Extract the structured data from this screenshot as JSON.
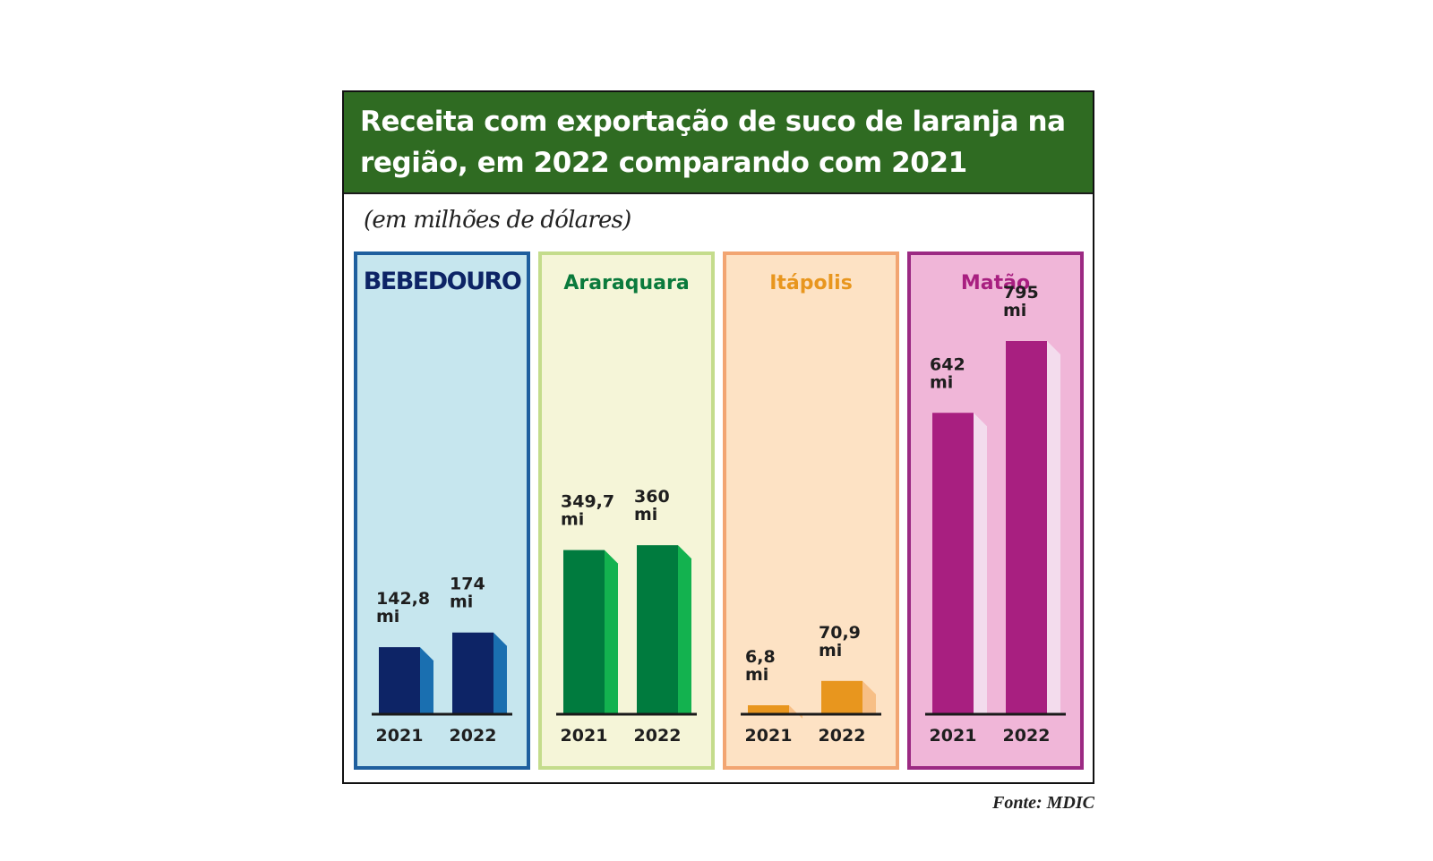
{
  "title": "Receita com exportação de suco de laranja na região, em 2022 comparando com 2021",
  "title_lines": [
    "Receita com exportação de suco de laranja na",
    "região, em 2022 comparando com 2021"
  ],
  "unit_note": "(em milhões de dólares)",
  "source": "Fonte: MDIC",
  "colors": {
    "header": "#2f6b22"
  },
  "chart_data": [
    {
      "type": "bar",
      "title": "BEBEDOURO",
      "categories": [
        "2021",
        "2022"
      ],
      "values": [
        142.8,
        174
      ],
      "value_labels": [
        [
          "142,8",
          "mi"
        ],
        [
          "174",
          "mi"
        ]
      ],
      "style": {
        "panel_bg": "#c6e6ee",
        "panel_border": "#1f5f9e",
        "bar": "#0d2466",
        "bar_side": "#1a6fb0",
        "title_color": "#0d2466"
      }
    },
    {
      "type": "bar",
      "title": "Araraquara",
      "categories": [
        "2021",
        "2022"
      ],
      "values": [
        349.7,
        360
      ],
      "value_labels": [
        [
          "349,7",
          "mi"
        ],
        [
          "360",
          "mi"
        ]
      ],
      "style": {
        "panel_bg": "#f5f5d8",
        "panel_border": "#c4dc8c",
        "bar": "#007b3e",
        "bar_side": "#13b24f",
        "title_color": "#0a7a3c"
      }
    },
    {
      "type": "bar",
      "title": "Itápolis",
      "categories": [
        "2021",
        "2022"
      ],
      "values": [
        6.8,
        70.9
      ],
      "value_labels": [
        [
          "6,8",
          "mi"
        ],
        [
          "70,9",
          "mi"
        ]
      ],
      "style": {
        "panel_bg": "#fde2c4",
        "panel_border": "#f2a572",
        "bar": "#e8961e",
        "bar_side": "#f7bf86",
        "title_color": "#e8961e"
      }
    },
    {
      "type": "bar",
      "title": "Matão",
      "categories": [
        "2021",
        "2022"
      ],
      "values": [
        642,
        795
      ],
      "value_labels": [
        [
          "642",
          "mi"
        ],
        [
          "795",
          "mi"
        ]
      ],
      "style": {
        "panel_bg": "#f0b6d8",
        "panel_border": "#9c2a83",
        "bar": "#a81f80",
        "bar_side": "#f3dced",
        "title_color": "#a81f80"
      }
    }
  ]
}
